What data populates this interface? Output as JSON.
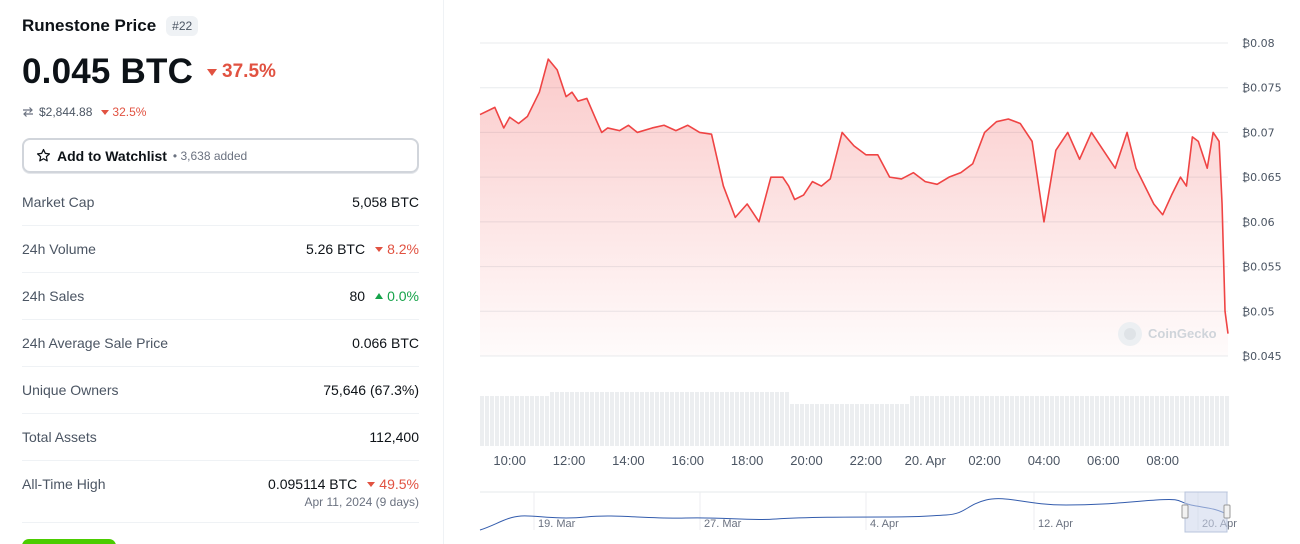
{
  "header": {
    "coin_name": "Runestone Price",
    "rank": "#22",
    "price": "0.045 BTC",
    "price_change": "37.5%",
    "usd_price": "$2,844.88",
    "usd_change": "32.5%"
  },
  "watchlist": {
    "label": "Add to Watchlist",
    "added": "• 3,638 added"
  },
  "stats": {
    "market_cap": {
      "label": "Market Cap",
      "value": "5,058 BTC"
    },
    "volume_24h": {
      "label": "24h Volume",
      "value": "5.26 BTC",
      "change": "8.2%"
    },
    "sales_24h": {
      "label": "24h Sales",
      "value": "80",
      "change": "0.0%"
    },
    "avg_sale_24h": {
      "label": "24h Average Sale Price",
      "value": "0.066 BTC"
    },
    "unique_owners": {
      "label": "Unique Owners",
      "value": "75,646 (67.3%)"
    },
    "total_assets": {
      "label": "Total Assets",
      "value": "112,400"
    },
    "ath": {
      "label": "All-Time High",
      "value": "0.095114 BTC",
      "change": "49.5%",
      "date": "Apr 11, 2024 (9 days)"
    }
  },
  "colors": {
    "down": "#e15241",
    "up": "#16a34a",
    "line": "#ef4444",
    "navigator": "#335cad"
  },
  "chart_data": {
    "type": "area",
    "watermark": "CoinGecko",
    "yticks": [
      "₿0.08",
      "₿0.075",
      "₿0.07",
      "₿0.065",
      "₿0.06",
      "₿0.055",
      "₿0.05",
      "₿0.045"
    ],
    "ylim": [
      0.045,
      0.08
    ],
    "xticks": [
      "10:00",
      "12:00",
      "14:00",
      "16:00",
      "18:00",
      "20:00",
      "22:00",
      "20. Apr",
      "02:00",
      "04:00",
      "06:00",
      "08:00"
    ],
    "navigator_ticks": [
      "19. Mar",
      "27. Mar",
      "4. Apr",
      "12. Apr",
      "20. Apr"
    ],
    "x_hours": [
      9.0,
      9.5,
      9.8,
      10.0,
      10.3,
      10.6,
      11.0,
      11.3,
      11.6,
      11.9,
      12.1,
      12.3,
      12.6,
      12.9,
      13.1,
      13.3,
      13.7,
      14.0,
      14.3,
      14.8,
      15.2,
      15.6,
      16.0,
      16.4,
      16.8,
      17.2,
      17.6,
      18.0,
      18.4,
      18.8,
      19.2,
      19.4,
      19.6,
      19.9,
      20.2,
      20.5,
      20.8,
      21.2,
      21.6,
      22.0,
      22.4,
      22.8,
      23.2,
      23.6,
      24.0,
      24.4,
      24.8,
      25.2,
      25.6,
      26.0,
      26.4,
      26.8,
      27.2,
      27.6,
      28.0,
      28.4,
      28.8,
      29.2,
      29.6,
      30.0,
      30.4,
      30.8,
      31.1,
      31.4,
      31.7,
      32.0,
      32.3,
      32.6,
      32.8,
      33.0,
      33.2,
      33.5,
      33.7,
      33.9,
      34.0,
      34.1,
      34.2
    ],
    "y_values": [
      0.072,
      0.0728,
      0.0705,
      0.0717,
      0.071,
      0.0718,
      0.0745,
      0.0782,
      0.077,
      0.074,
      0.0745,
      0.0735,
      0.0738,
      0.0715,
      0.07,
      0.0705,
      0.0702,
      0.0708,
      0.07,
      0.0705,
      0.0708,
      0.0702,
      0.0708,
      0.07,
      0.0698,
      0.064,
      0.0605,
      0.062,
      0.06,
      0.065,
      0.065,
      0.064,
      0.0625,
      0.063,
      0.0645,
      0.064,
      0.0648,
      0.07,
      0.0685,
      0.0675,
      0.0675,
      0.065,
      0.0648,
      0.0655,
      0.0645,
      0.0642,
      0.065,
      0.0655,
      0.0665,
      0.07,
      0.0712,
      0.0715,
      0.071,
      0.069,
      0.06,
      0.068,
      0.07,
      0.067,
      0.07,
      0.068,
      0.066,
      0.07,
      0.066,
      0.064,
      0.062,
      0.0608,
      0.063,
      0.065,
      0.064,
      0.0695,
      0.069,
      0.066,
      0.07,
      0.069,
      0.062,
      0.05,
      0.0475
    ],
    "volume": "bars",
    "grid": true,
    "navigator": "bottom"
  }
}
